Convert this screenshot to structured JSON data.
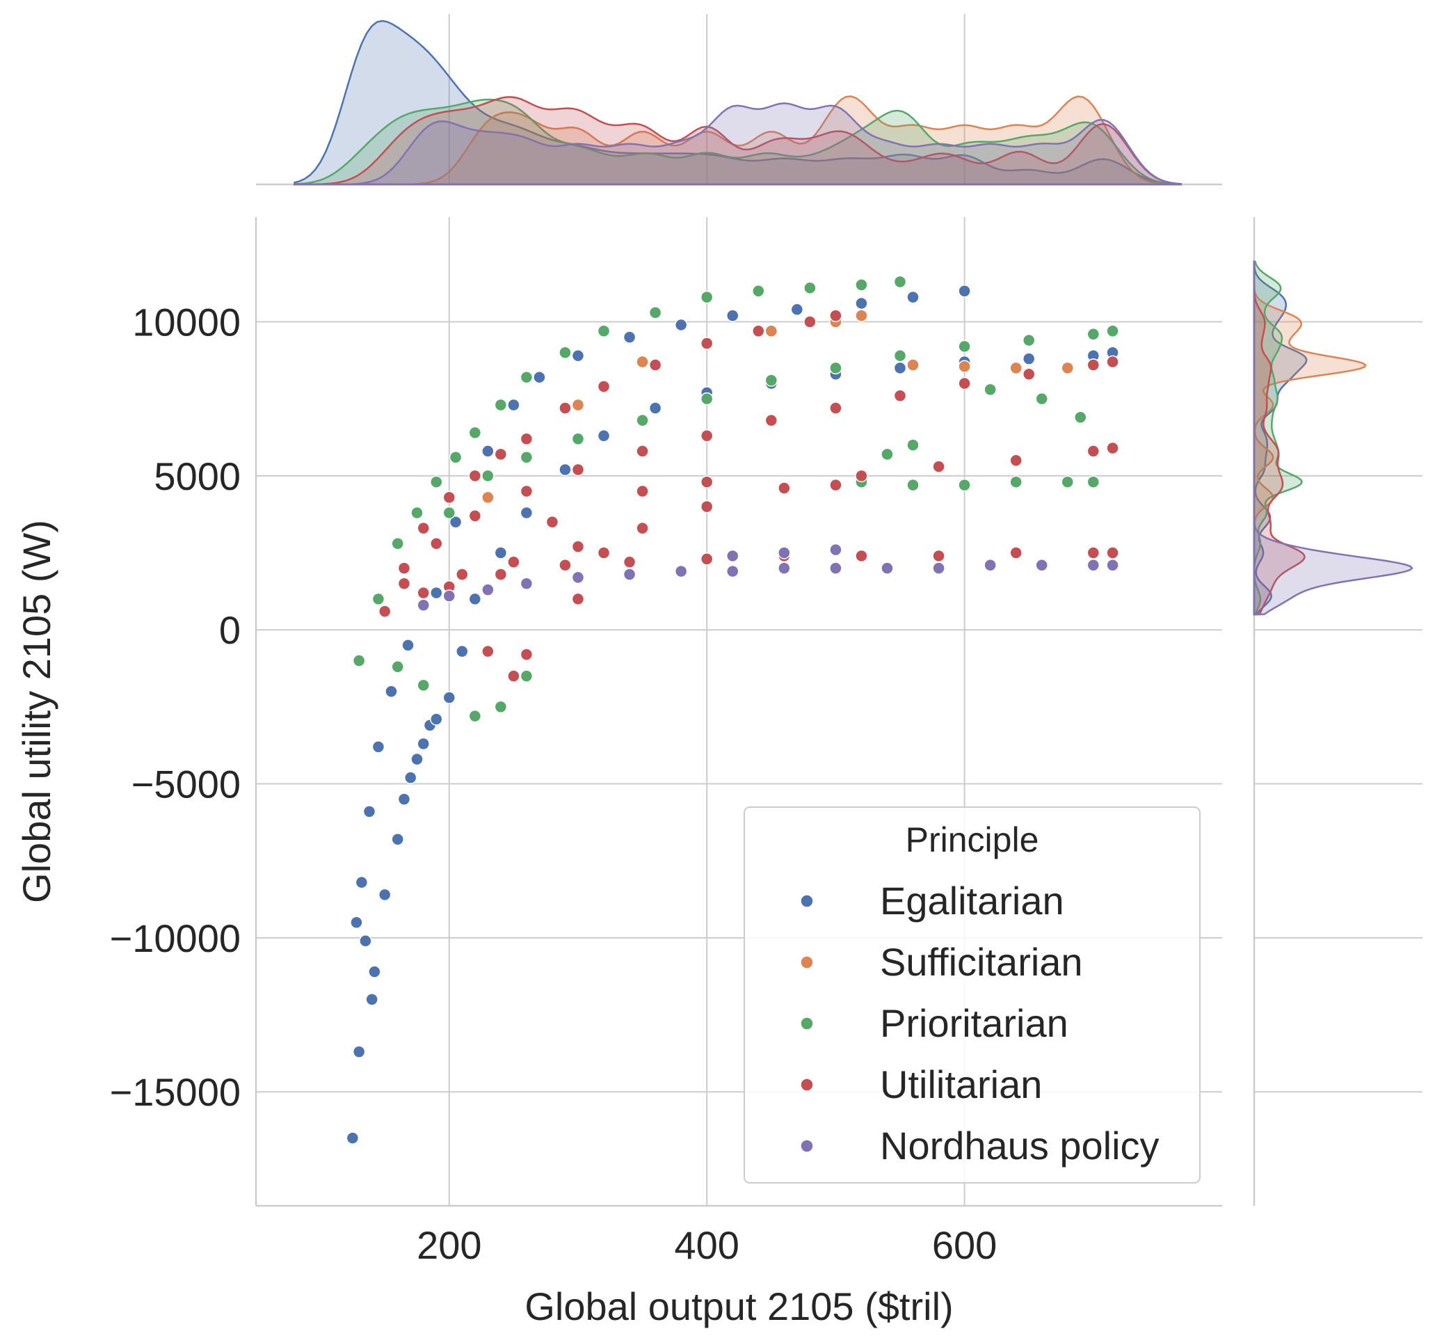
{
  "chart_data": {
    "type": "scatter",
    "xlabel": "Global output 2105 ($tril)",
    "ylabel": "Global utility 2105 (W)",
    "xlim": [
      50,
      800
    ],
    "ylim": [
      -18700,
      13400
    ],
    "x_ticks": [
      200,
      400,
      600
    ],
    "x_tick_labels": [
      "200",
      "400",
      "600"
    ],
    "y_ticks": [
      10000,
      5000,
      0,
      -5000,
      -10000,
      -15000
    ],
    "y_tick_labels": [
      "10000",
      "5000",
      "0",
      "−5000",
      "−10000",
      "−15000"
    ],
    "grid": true,
    "legend": {
      "title": "Principle",
      "placement": "lower-right"
    },
    "marginals": {
      "top": "kde of x by principle",
      "right": "kde of y by principle"
    },
    "series": [
      {
        "name": "Egalitarian",
        "color": "#4c72b0",
        "x": [
          125,
          130,
          128,
          135,
          140,
          142,
          150,
          160,
          165,
          170,
          175,
          180,
          185,
          190,
          200,
          210,
          220,
          240,
          260,
          290,
          320,
          360,
          400,
          450,
          500,
          550,
          600,
          650,
          700,
          715,
          132,
          138,
          145,
          155,
          168,
          190,
          205,
          230,
          250,
          270,
          300,
          340,
          380,
          420,
          470,
          520,
          560,
          600
        ],
        "y": [
          -16500,
          -13700,
          -9500,
          -10100,
          -12000,
          -11100,
          -8600,
          -6800,
          -5500,
          -4800,
          -4200,
          -3700,
          -3100,
          -2900,
          -2200,
          -700,
          1000,
          2500,
          3800,
          5200,
          6300,
          7200,
          7700,
          8000,
          8300,
          8500,
          8700,
          8800,
          8900,
          9000,
          -8200,
          -5900,
          -3800,
          -2000,
          -500,
          1200,
          3500,
          5800,
          7300,
          8200,
          8900,
          9500,
          9900,
          10200,
          10400,
          10600,
          10800,
          11000
        ]
      },
      {
        "name": "Sufficitarian",
        "color": "#dd8452",
        "x": [
          230,
          260,
          300,
          350,
          400,
          450,
          500,
          520,
          560,
          600,
          640,
          680,
          700
        ],
        "y": [
          4300,
          5600,
          7300,
          8700,
          9300,
          9700,
          10000,
          10200,
          8600,
          8550,
          8500,
          8500,
          8600
        ]
      },
      {
        "name": "Prioritarian",
        "color": "#55a868",
        "x": [
          130,
          145,
          160,
          175,
          190,
          205,
          220,
          240,
          260,
          290,
          320,
          360,
          400,
          440,
          480,
          520,
          550,
          160,
          180,
          200,
          230,
          260,
          300,
          350,
          400,
          450,
          500,
          550,
          600,
          650,
          700,
          715,
          220,
          240,
          260,
          520,
          560,
          600,
          640,
          680,
          700,
          540,
          560,
          620,
          660,
          690
        ],
        "y": [
          -1000,
          1000,
          2800,
          3800,
          4800,
          5600,
          6400,
          7300,
          8200,
          9000,
          9700,
          10300,
          10800,
          11000,
          11100,
          11200,
          11300,
          -1200,
          -1800,
          3800,
          5000,
          5600,
          6200,
          6800,
          7500,
          8100,
          8500,
          8900,
          9200,
          9400,
          9600,
          9700,
          -2800,
          -2500,
          -1500,
          4800,
          4700,
          4700,
          4800,
          4800,
          4800,
          5700,
          6000,
          7800,
          7500,
          6900
        ]
      },
      {
        "name": "Utilitarian",
        "color": "#c44e52",
        "x": [
          150,
          165,
          180,
          200,
          220,
          240,
          260,
          290,
          320,
          360,
          400,
          440,
          480,
          500,
          165,
          190,
          220,
          260,
          300,
          350,
          400,
          450,
          500,
          550,
          600,
          650,
          700,
          715,
          180,
          210,
          250,
          300,
          350,
          400,
          460,
          520,
          580,
          640,
          700,
          715,
          200,
          240,
          290,
          340,
          400,
          460,
          520,
          580,
          640,
          700,
          715,
          230,
          250,
          260,
          280,
          300,
          320,
          350,
          400,
          500
        ],
        "y": [
          600,
          2000,
          3300,
          4300,
          5000,
          5700,
          6200,
          7200,
          7900,
          8600,
          9300,
          9700,
          10000,
          10200,
          1500,
          2800,
          3700,
          4500,
          5200,
          5800,
          6300,
          6800,
          7200,
          7600,
          8000,
          8300,
          8600,
          8700,
          1200,
          1800,
          2200,
          2700,
          3300,
          4000,
          4600,
          5000,
          5300,
          5500,
          5800,
          5900,
          1400,
          1800,
          2100,
          2200,
          2300,
          2400,
          2400,
          2400,
          2500,
          2500,
          2500,
          -700,
          -1500,
          -800,
          3500,
          1000,
          2500,
          4500,
          4800,
          4700
        ]
      },
      {
        "name": "Nordhaus policy",
        "color": "#8172b3",
        "x": [
          180,
          200,
          230,
          260,
          300,
          340,
          380,
          420,
          460,
          500,
          540,
          580,
          620,
          660,
          700,
          715,
          420,
          460,
          500
        ],
        "y": [
          800,
          1100,
          1300,
          1500,
          1700,
          1800,
          1900,
          1900,
          2000,
          2000,
          2000,
          2000,
          2100,
          2100,
          2100,
          2100,
          2400,
          2500,
          2600
        ]
      }
    ]
  }
}
